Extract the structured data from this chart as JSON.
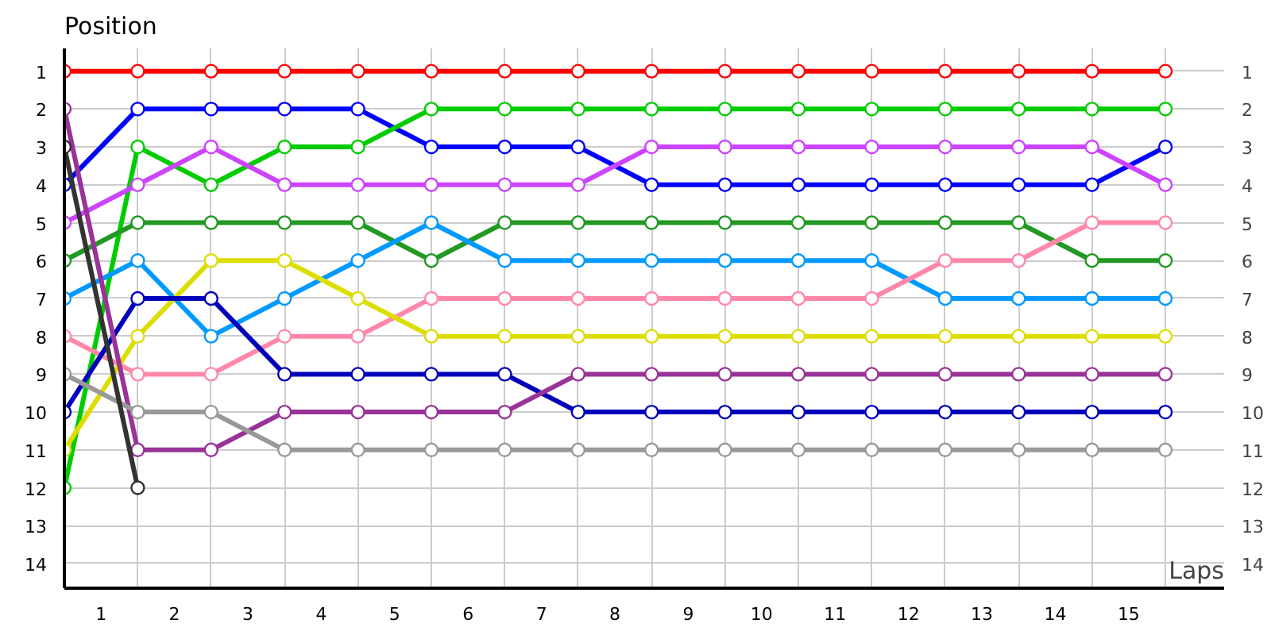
{
  "chart_data": {
    "type": "line",
    "xlabel": "Laps",
    "ylabel": "Position",
    "x": [
      0,
      1,
      2,
      3,
      4,
      5,
      6,
      7,
      8,
      9,
      10,
      11,
      12,
      13,
      14,
      15
    ],
    "xlim": [
      0,
      15.8
    ],
    "xticks": [
      {
        "value": 0.5,
        "label": "1"
      },
      {
        "value": 1.5,
        "label": "2"
      },
      {
        "value": 2.5,
        "label": "3"
      },
      {
        "value": 3.5,
        "label": "4"
      },
      {
        "value": 4.5,
        "label": "5"
      },
      {
        "value": 5.5,
        "label": "6"
      },
      {
        "value": 6.5,
        "label": "7"
      },
      {
        "value": 7.5,
        "label": "8"
      },
      {
        "value": 8.5,
        "label": "9"
      },
      {
        "value": 9.5,
        "label": "10"
      },
      {
        "value": 10.5,
        "label": "11"
      },
      {
        "value": 11.5,
        "label": "12"
      },
      {
        "value": 12.5,
        "label": "13"
      },
      {
        "value": 13.5,
        "label": "14"
      },
      {
        "value": 14.5,
        "label": "15"
      },
      {
        "value": 1,
        "label": null
      },
      {
        "value": 2,
        "label": null
      },
      {
        "value": 3,
        "label": null
      },
      {
        "value": 4,
        "label": null
      },
      {
        "value": 5,
        "label": null
      },
      {
        "value": 6,
        "label": null
      },
      {
        "value": 7,
        "label": null
      },
      {
        "value": 8,
        "label": null
      },
      {
        "value": 9,
        "label": null
      },
      {
        "value": 10,
        "label": null
      },
      {
        "value": 11,
        "label": null
      },
      {
        "value": 12,
        "label": null
      },
      {
        "value": 13,
        "label": null
      },
      {
        "value": 14,
        "label": null
      },
      {
        "value": 15,
        "label": null
      }
    ],
    "ylim": [
      14.65,
      0.4
    ],
    "yticks": [
      1,
      2,
      3,
      4,
      5,
      6,
      7,
      8,
      9,
      10,
      11,
      12,
      13,
      14
    ],
    "y2lim": [
      14.65,
      0.4
    ],
    "y2ticks": [
      1,
      2,
      3,
      4,
      5,
      6,
      7,
      8,
      9,
      10,
      11,
      12,
      13,
      14
    ],
    "grid": true,
    "marker": "circle",
    "line_style": "solid",
    "series": [
      {
        "color": "#ff0000",
        "values": [
          1,
          1,
          1,
          1,
          1,
          1,
          1,
          1,
          1,
          1,
          1,
          1,
          1,
          1,
          1,
          1
        ]
      },
      {
        "color": "#0000ff",
        "values": [
          4,
          2,
          2,
          2,
          2,
          3,
          3,
          3,
          4,
          4,
          4,
          4,
          4,
          4,
          4,
          3
        ]
      },
      {
        "color": "#00cc00",
        "values": [
          12,
          3,
          4,
          3,
          3,
          2,
          2,
          2,
          2,
          2,
          2,
          2,
          2,
          2,
          2,
          2
        ]
      },
      {
        "color": "#cc44ff",
        "values": [
          5,
          4,
          3,
          4,
          4,
          4,
          4,
          4,
          3,
          3,
          3,
          3,
          3,
          3,
          3,
          4
        ]
      },
      {
        "color": "#229922",
        "values": [
          6,
          5,
          5,
          5,
          5,
          6,
          5,
          5,
          5,
          5,
          5,
          5,
          5,
          5,
          6,
          6
        ]
      },
      {
        "color": "#0099ff",
        "values": [
          7,
          6,
          8,
          7,
          6,
          5,
          6,
          6,
          6,
          6,
          6,
          6,
          7,
          7,
          7,
          7
        ]
      },
      {
        "color": "#ff88aa",
        "values": [
          8,
          9,
          9,
          8,
          8,
          7,
          7,
          7,
          7,
          7,
          7,
          7,
          6,
          6,
          5,
          5
        ]
      },
      {
        "color": "#dddd00",
        "values": [
          11,
          8,
          6,
          6,
          7,
          8,
          8,
          8,
          8,
          8,
          8,
          8,
          8,
          8,
          8,
          8
        ]
      },
      {
        "color": "#0000bb",
        "values": [
          10,
          7,
          7,
          9,
          9,
          9,
          9,
          10,
          10,
          10,
          10,
          10,
          10,
          10,
          10,
          10
        ]
      },
      {
        "color": "#993399",
        "values": [
          2,
          11,
          11,
          10,
          10,
          10,
          10,
          9,
          9,
          9,
          9,
          9,
          9,
          9,
          9,
          9
        ]
      },
      {
        "color": "#999999",
        "values": [
          9,
          10,
          10,
          11,
          11,
          11,
          11,
          11,
          11,
          11,
          11,
          11,
          11,
          11,
          11,
          11
        ]
      },
      {
        "color": "#333333",
        "values": [
          3,
          12,
          null,
          null,
          null,
          null,
          null,
          null,
          null,
          null,
          null,
          null,
          null,
          null,
          null,
          null
        ]
      }
    ]
  }
}
